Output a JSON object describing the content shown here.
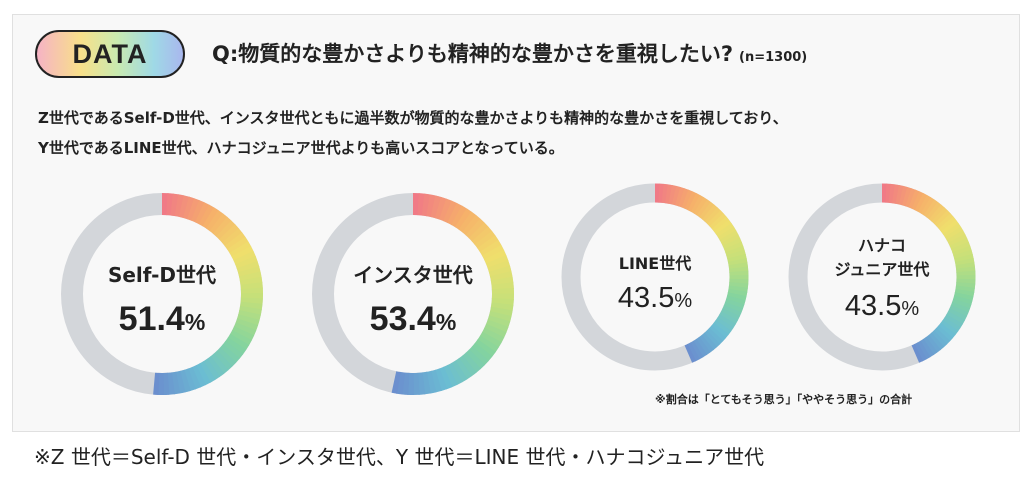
{
  "header": {
    "badge": "DATA",
    "question": "Q:物質的な豊かさよりも精神的な豊かさを重視したい?",
    "sample_size": "(n=1300)"
  },
  "description": {
    "line1": "Z世代であるSelf-D世代、インスタ世代ともに過半数が物質的な豊かさよりも精神的な豊かさを重視しており、",
    "line2": "Y世代であるLINE世代、ハナコジュニア世代よりも高いスコアとなっている。"
  },
  "note": "※割合は「とてもそう思う」「ややそう思う」の合計",
  "footer": "※Z 世代＝Self-D 世代・インスタ世代、Y 世代＝LINE 世代・ハナコジュニア世代",
  "colors": {
    "track": "#d3d6da",
    "gradient": [
      "#f07a86",
      "#f6b06a",
      "#f0df6c",
      "#c4e07a",
      "#84d49e",
      "#6bbdd3",
      "#6b8fce"
    ]
  },
  "chart_data": {
    "type": "donut",
    "title": "Q:物質的な豊かさよりも精神的な豊かさを重視したい?",
    "unit": "%",
    "series": [
      {
        "name": "Self-D世代",
        "value": 51.4,
        "label": "51.4%",
        "name_lines": [
          "Self-D世代"
        ]
      },
      {
        "name": "インスタ世代",
        "value": 53.4,
        "label": "53.4%",
        "name_lines": [
          "インスタ世代"
        ]
      },
      {
        "name": "LINE世代",
        "value": 43.5,
        "label": "43.5%",
        "name_lines": [
          "LINE世代"
        ]
      },
      {
        "name": "ハナコジュニア世代",
        "value": 43.5,
        "label": "43.5%",
        "name_lines": [
          "ハナコ",
          "ジュニア世代"
        ]
      }
    ]
  }
}
